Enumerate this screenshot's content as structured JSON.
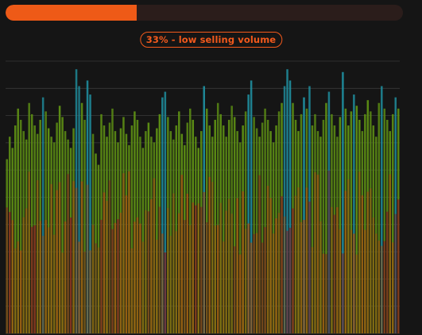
{
  "progress": {
    "value_percent": 33,
    "fill_color": "#ee5a17",
    "track_color": "#2b1d1b"
  },
  "status": {
    "label": "33% - low selling volume",
    "color": "#f2591c"
  },
  "chart_data": {
    "type": "bar",
    "ylim": [
      0,
      100
    ],
    "grid": true,
    "gridline_count": 10,
    "series_colors": {
      "total": "#5c8d14",
      "high_volume": "#1f8a9a",
      "base": "#a65412",
      "low_volume": "#8b1f22"
    },
    "values": [
      62,
      70,
      66,
      74,
      80,
      76,
      72,
      69,
      82,
      78,
      74,
      71,
      76,
      84,
      79,
      73,
      70,
      68,
      75,
      81,
      77,
      72,
      69,
      66,
      73,
      94,
      88,
      82,
      76,
      90,
      85,
      71,
      64,
      60,
      78,
      74,
      70,
      75,
      80,
      72,
      68,
      73,
      77,
      71,
      67,
      74,
      79,
      76,
      70,
      66,
      72,
      75,
      70,
      68,
      73,
      78,
      84,
      86,
      77,
      72,
      69,
      74,
      79,
      71,
      67,
      75,
      80,
      76,
      70,
      66,
      72,
      88,
      80,
      74,
      70,
      76,
      82,
      78,
      74,
      70,
      76,
      81,
      77,
      72,
      68,
      74,
      79,
      85,
      90,
      77,
      73,
      70,
      75,
      80,
      76,
      72,
      68,
      74,
      79,
      82,
      88,
      94,
      90,
      82,
      76,
      72,
      78,
      84,
      80,
      88,
      74,
      78,
      72,
      70,
      76,
      82,
      86,
      78,
      74,
      70,
      77,
      93,
      80,
      74,
      79,
      85,
      81,
      76,
      72,
      78,
      83,
      79,
      74,
      70,
      82,
      88,
      80,
      76,
      72,
      78,
      84,
      80
    ]
  }
}
